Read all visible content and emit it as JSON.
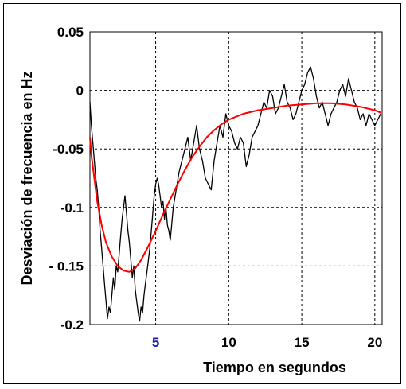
{
  "chart_data": {
    "type": "line",
    "xlabel": "Tiempo en segundos",
    "ylabel": "Desviación de frecuencia en Hz",
    "xlim": [
      0.5,
      20.5
    ],
    "ylim": [
      -0.2,
      0.05
    ],
    "xticks": [
      {
        "value": 5,
        "label": "5",
        "color": "#1f1fb4"
      },
      {
        "value": 10,
        "label": "10",
        "color": "#000000"
      },
      {
        "value": 15,
        "label": "15",
        "color": "#000000"
      },
      {
        "value": 20,
        "label": "20",
        "color": "#000000"
      }
    ],
    "yticks": [
      {
        "value": 0.05,
        "label": "0.05"
      },
      {
        "value": 0,
        "label": "0"
      },
      {
        "value": -0.05,
        "label": "-0.05"
      },
      {
        "value": -0.1,
        "label": "-0.1"
      },
      {
        "value": -0.15,
        "label": "- 0.15"
      },
      {
        "value": -0.2,
        "label": "-0.2"
      }
    ],
    "grid": true,
    "series": [
      {
        "color": "#000000",
        "x": [
          0.5,
          0.6,
          0.7,
          0.8,
          0.9,
          1.0,
          1.1,
          1.2,
          1.3,
          1.4,
          1.5,
          1.6,
          1.7,
          1.8,
          1.9,
          2.0,
          2.1,
          2.2,
          2.3,
          2.4,
          2.5,
          2.6,
          2.7,
          2.8,
          2.9,
          3.0,
          3.1,
          3.2,
          3.3,
          3.4,
          3.5,
          3.6,
          3.7,
          3.8,
          3.9,
          4.0,
          4.1,
          4.2,
          4.3,
          4.4,
          4.5,
          4.6,
          4.7,
          4.8,
          4.9,
          5.0,
          5.1,
          5.2,
          5.3,
          5.4,
          5.5,
          5.6,
          5.7,
          5.8,
          5.9,
          6.0,
          6.2,
          6.4,
          6.6,
          6.8,
          7.0,
          7.2,
          7.4,
          7.6,
          7.8,
          8.0,
          8.2,
          8.4,
          8.6,
          8.8,
          9.0,
          9.2,
          9.4,
          9.6,
          9.8,
          10.0,
          10.2,
          10.4,
          10.6,
          10.8,
          11.0,
          11.2,
          11.4,
          11.6,
          11.8,
          12.0,
          12.2,
          12.4,
          12.6,
          12.8,
          13.0,
          13.2,
          13.4,
          13.6,
          13.8,
          14.0,
          14.2,
          14.4,
          14.6,
          14.8,
          15.0,
          15.2,
          15.4,
          15.6,
          15.8,
          16.0,
          16.2,
          16.4,
          16.6,
          16.8,
          17.0,
          17.2,
          17.4,
          17.6,
          17.8,
          18.0,
          18.2,
          18.4,
          18.6,
          18.8,
          19.0,
          19.2,
          19.4,
          19.6,
          19.8,
          20.0,
          20.2,
          20.4
        ],
        "y": [
          -0.01,
          -0.03,
          -0.045,
          -0.06,
          -0.075,
          -0.085,
          -0.1,
          -0.12,
          -0.135,
          -0.15,
          -0.165,
          -0.18,
          -0.195,
          -0.185,
          -0.19,
          -0.175,
          -0.16,
          -0.17,
          -0.15,
          -0.155,
          -0.14,
          -0.125,
          -0.11,
          -0.1,
          -0.09,
          -0.105,
          -0.12,
          -0.13,
          -0.145,
          -0.16,
          -0.15,
          -0.17,
          -0.18,
          -0.19,
          -0.197,
          -0.185,
          -0.19,
          -0.175,
          -0.165,
          -0.155,
          -0.145,
          -0.135,
          -0.12,
          -0.105,
          -0.09,
          -0.08,
          -0.075,
          -0.08,
          -0.09,
          -0.1,
          -0.095,
          -0.11,
          -0.1,
          -0.115,
          -0.12,
          -0.128,
          -0.1,
          -0.085,
          -0.07,
          -0.06,
          -0.05,
          -0.04,
          -0.06,
          -0.045,
          -0.03,
          -0.05,
          -0.06,
          -0.075,
          -0.08,
          -0.085,
          -0.06,
          -0.045,
          -0.03,
          -0.04,
          -0.02,
          -0.03,
          -0.035,
          -0.045,
          -0.05,
          -0.04,
          -0.045,
          -0.065,
          -0.055,
          -0.04,
          -0.035,
          -0.03,
          -0.02,
          -0.01,
          -0.015,
          0.0,
          -0.005,
          -0.02,
          -0.015,
          -0.005,
          0.005,
          -0.01,
          -0.015,
          -0.025,
          -0.02,
          -0.01,
          0.0,
          0.005,
          0.015,
          0.02,
          0.01,
          -0.005,
          -0.015,
          -0.01,
          -0.02,
          -0.03,
          -0.02,
          -0.015,
          -0.01,
          0.0,
          0.005,
          -0.005,
          0.01,
          0.0,
          -0.01,
          -0.015,
          -0.025,
          -0.02,
          -0.03,
          -0.02,
          -0.025,
          -0.03,
          -0.025,
          -0.02
        ]
      },
      {
        "color": "#ff0000",
        "x": [
          0.5,
          0.6,
          0.8,
          1.0,
          1.3,
          1.6,
          2.0,
          2.4,
          2.8,
          3.2,
          3.6,
          4.0,
          4.5,
          5.0,
          5.5,
          6.0,
          6.5,
          7.0,
          7.5,
          8.0,
          8.5,
          9.0,
          9.5,
          10.0,
          11.0,
          12.0,
          13.0,
          14.0,
          15.0,
          16.0,
          17.0,
          18.0,
          19.0,
          20.0,
          20.4
        ],
        "y": [
          -0.04,
          -0.055,
          -0.075,
          -0.095,
          -0.115,
          -0.13,
          -0.142,
          -0.15,
          -0.154,
          -0.155,
          -0.152,
          -0.145,
          -0.133,
          -0.12,
          -0.106,
          -0.093,
          -0.08,
          -0.068,
          -0.057,
          -0.048,
          -0.04,
          -0.034,
          -0.029,
          -0.025,
          -0.02,
          -0.017,
          -0.015,
          -0.013,
          -0.012,
          -0.011,
          -0.011,
          -0.012,
          -0.014,
          -0.017,
          -0.019
        ]
      }
    ]
  },
  "colors": {
    "grid": "#000000",
    "frame": "#000000",
    "background": "#ffffff"
  }
}
